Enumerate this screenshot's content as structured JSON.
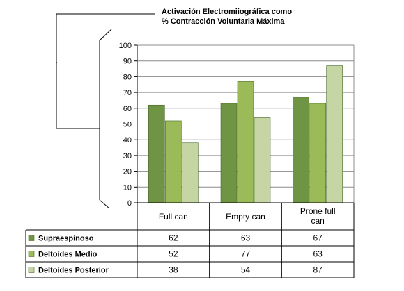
{
  "chart_data": {
    "type": "bar",
    "title_line1": "Activación Electromiiográfica como",
    "title_line2": "%    Contracción Voluntaria Máxima",
    "categories": [
      "Full can",
      "Empty can",
      "Prone full can"
    ],
    "category_lines": [
      [
        "Full can"
      ],
      [
        "Empty can"
      ],
      [
        "Prone full",
        "can"
      ]
    ],
    "series": [
      {
        "name": "Supraespinoso",
        "values": [
          62,
          63,
          67
        ],
        "color": "#6f9443"
      },
      {
        "name": "Deltoides Medio",
        "values": [
          52,
          77,
          63
        ],
        "color": "#9bbb59"
      },
      {
        "name": "Deltoides Posterior",
        "values": [
          38,
          54,
          87
        ],
        "color": "#c5d6a4"
      }
    ],
    "yticks": [
      "0",
      "10",
      "20",
      "30",
      "40",
      "50",
      "60",
      "70",
      "80",
      "90",
      "100"
    ],
    "ylim": [
      0,
      100
    ],
    "grid": true,
    "legend": "data-table"
  }
}
